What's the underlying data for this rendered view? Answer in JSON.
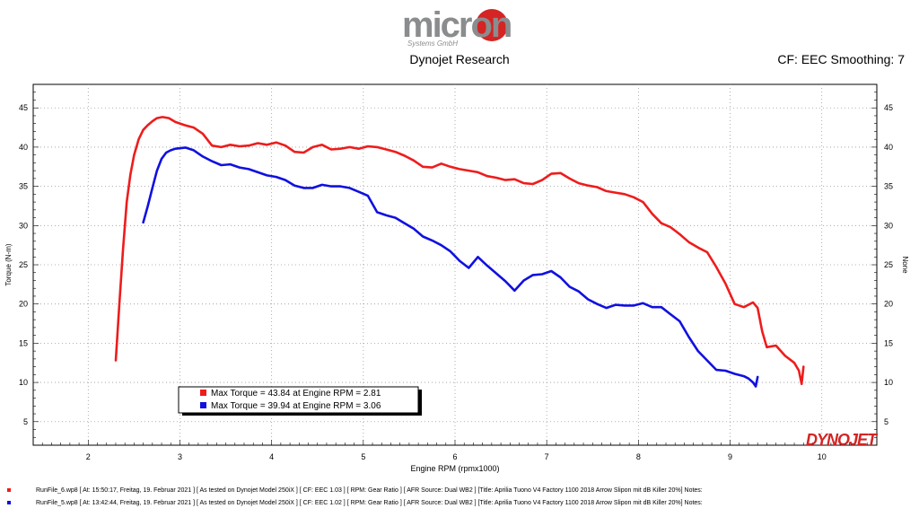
{
  "header": {
    "logo_text": "micron",
    "logo_sub": "Systems GmbH",
    "title": "Dynojet Research",
    "cf_label": "CF: EEC Smoothing: 7"
  },
  "brand": {
    "watermark": "DYNOJET",
    "accent": "#d42424"
  },
  "chart_data": {
    "type": "line",
    "title": "Dynojet Research",
    "xlabel": "Engine RPM (rpmx1000)",
    "ylabel": "Torque (N-m)",
    "ylabel_right": "None",
    "xlim": [
      1.4,
      10.6
    ],
    "ylim": [
      2,
      48
    ],
    "x_ticks": [
      2,
      3,
      4,
      5,
      6,
      7,
      8,
      9,
      10
    ],
    "y_ticks": [
      5,
      10,
      15,
      20,
      25,
      30,
      35,
      40,
      45
    ],
    "grid": true,
    "series": [
      {
        "name": "RunFile_6",
        "color": "#ee1c1c",
        "legend": "Max Torque = 43.84 at Engine RPM = 2.81",
        "x": [
          2.3,
          2.34,
          2.38,
          2.42,
          2.46,
          2.5,
          2.55,
          2.6,
          2.65,
          2.7,
          2.75,
          2.81,
          2.88,
          2.95,
          3.05,
          3.15,
          3.25,
          3.35,
          3.45,
          3.55,
          3.65,
          3.75,
          3.85,
          3.95,
          4.05,
          4.15,
          4.25,
          4.35,
          4.45,
          4.55,
          4.65,
          4.75,
          4.85,
          4.95,
          5.05,
          5.15,
          5.25,
          5.35,
          5.45,
          5.55,
          5.65,
          5.75,
          5.85,
          5.95,
          6.05,
          6.15,
          6.25,
          6.35,
          6.45,
          6.55,
          6.65,
          6.75,
          6.85,
          6.95,
          7.05,
          7.15,
          7.25,
          7.35,
          7.45,
          7.55,
          7.65,
          7.75,
          7.85,
          7.95,
          8.05,
          8.15,
          8.25,
          8.35,
          8.45,
          8.55,
          8.65,
          8.75,
          8.85,
          8.95,
          9.05,
          9.15,
          9.25,
          9.3,
          9.35,
          9.4,
          9.5,
          9.6,
          9.7,
          9.75,
          9.78,
          9.8
        ],
        "y": [
          12.8,
          20.0,
          27.0,
          33.0,
          36.5,
          39.0,
          41.0,
          42.2,
          42.8,
          43.3,
          43.7,
          43.84,
          43.7,
          43.2,
          42.8,
          42.5,
          41.7,
          40.2,
          40.0,
          40.3,
          40.1,
          40.2,
          40.5,
          40.3,
          40.6,
          40.2,
          39.4,
          39.3,
          40.0,
          40.3,
          39.7,
          39.8,
          40.0,
          39.8,
          40.1,
          40.0,
          39.7,
          39.4,
          38.9,
          38.3,
          37.5,
          37.4,
          37.9,
          37.5,
          37.2,
          37.0,
          36.8,
          36.3,
          36.1,
          35.8,
          35.9,
          35.4,
          35.3,
          35.8,
          36.6,
          36.7,
          36.0,
          35.4,
          35.1,
          34.9,
          34.4,
          34.2,
          34.0,
          33.6,
          33.0,
          31.5,
          30.3,
          29.8,
          28.9,
          27.9,
          27.2,
          26.6,
          24.7,
          22.6,
          20.0,
          19.6,
          20.2,
          19.5,
          16.5,
          14.5,
          14.7,
          13.4,
          12.5,
          11.5,
          9.8,
          12.0
        ]
      },
      {
        "name": "RunFile_5",
        "color": "#1010e0",
        "legend": "Max Torque = 39.94 at Engine RPM = 3.06",
        "x": [
          2.6,
          2.65,
          2.7,
          2.75,
          2.8,
          2.85,
          2.9,
          2.95,
          3.06,
          3.15,
          3.25,
          3.35,
          3.45,
          3.55,
          3.65,
          3.75,
          3.85,
          3.95,
          4.05,
          4.15,
          4.25,
          4.35,
          4.45,
          4.55,
          4.65,
          4.75,
          4.85,
          4.95,
          5.05,
          5.15,
          5.25,
          5.35,
          5.45,
          5.55,
          5.65,
          5.75,
          5.85,
          5.95,
          6.05,
          6.15,
          6.25,
          6.35,
          6.45,
          6.55,
          6.65,
          6.75,
          6.85,
          6.95,
          7.05,
          7.15,
          7.25,
          7.35,
          7.45,
          7.55,
          7.65,
          7.75,
          7.85,
          7.95,
          8.05,
          8.15,
          8.25,
          8.35,
          8.45,
          8.55,
          8.65,
          8.75,
          8.85,
          8.95,
          9.05,
          9.15,
          9.2,
          9.25,
          9.28,
          9.3
        ],
        "y": [
          30.4,
          32.5,
          34.8,
          37.0,
          38.5,
          39.3,
          39.6,
          39.8,
          39.94,
          39.6,
          38.8,
          38.2,
          37.7,
          37.8,
          37.4,
          37.2,
          36.8,
          36.4,
          36.2,
          35.8,
          35.1,
          34.8,
          34.8,
          35.2,
          35.0,
          35.0,
          34.8,
          34.3,
          33.8,
          31.7,
          31.3,
          31.0,
          30.3,
          29.6,
          28.6,
          28.1,
          27.5,
          26.7,
          25.5,
          24.6,
          26.0,
          24.9,
          23.9,
          22.9,
          21.7,
          23.0,
          23.7,
          23.8,
          24.2,
          23.4,
          22.2,
          21.6,
          20.6,
          20.0,
          19.5,
          19.9,
          19.8,
          19.8,
          20.1,
          19.6,
          19.6,
          18.7,
          17.8,
          15.8,
          14.0,
          12.8,
          11.6,
          11.5,
          11.1,
          10.8,
          10.5,
          10.0,
          9.5,
          10.7
        ]
      }
    ]
  },
  "footer": {
    "rows": [
      {
        "color": "#ee1c1c",
        "text": "RunFile_6.wp8  [ At:  15:50:17, Freitag, 19. Februar 2021 ]  [ As tested on Dynojet Model 250iX ]  [ CF:  EEC 1.03 ]  [ RPM:  Gear Ratio ]  [ AFR Source:  Dual WB2 ]  [Title:  Aprilia Tuono V4 Factory 1100 2018 Arrow Slipon mit dB Killer 20%]   Notes:"
      },
      {
        "color": "#1010e0",
        "text": "RunFile_5.wp8  [ At:  13:42:44, Freitag, 19. Februar 2021 ]  [ As tested on Dynojet Model 250iX ]  [ CF:  EEC 1.02 ]  [ RPM:  Gear Ratio ]  [ AFR Source:  Dual WB2 ]  [Title:  Aprilia Tuono V4 Factory 1100 2018 Arrow Slipon mit dB Killer 20%]   Notes:"
      }
    ]
  }
}
